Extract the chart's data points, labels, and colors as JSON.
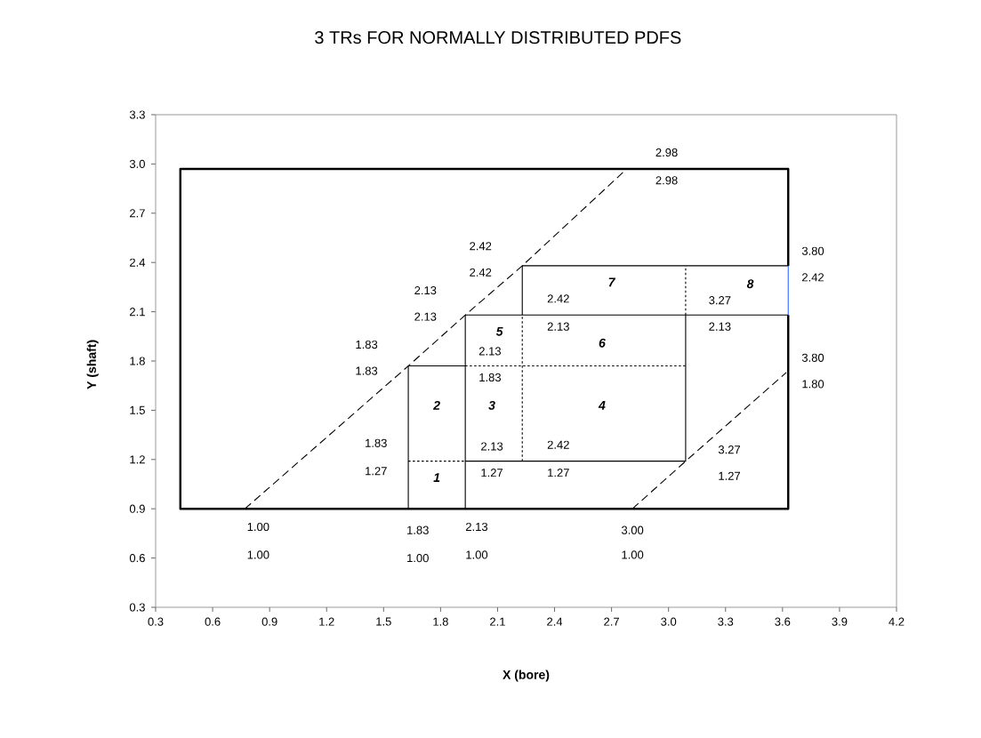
{
  "chart_data": {
    "type": "line",
    "title": "3 TRs FOR NORMALLY DISTRIBUTED PDFS",
    "xlabel": "X (bore)",
    "ylabel": "Y (shaft)",
    "xlim": [
      0.3,
      4.2
    ],
    "ylim": [
      0.3,
      3.3
    ],
    "xticks": [
      0.3,
      0.6,
      0.9,
      1.2,
      1.5,
      1.8,
      2.1,
      2.4,
      2.7,
      {
        "value": 3,
        "label": "3.0"
      },
      3.3,
      3.6,
      3.9,
      4.2
    ],
    "yticks": [
      0.3,
      0.6,
      0.9,
      1.2,
      1.5,
      1.8,
      2.1,
      2.4,
      2.7,
      {
        "value": 3,
        "label": "3.0"
      },
      3.3
    ],
    "marker": "none",
    "series": [
      {
        "color": "#000000",
        "line_style": "solid",
        "x": [
          3.63,
          3.63,
          0.43,
          0.43,
          3.63,
          3.63
        ],
        "values": [
          2.38,
          2.97,
          2.97,
          0.9,
          0.9,
          2.08
        ]
      },
      {
        "color": "#000000",
        "line_style": "solid",
        "x": [
          1.63,
          1.63,
          1.93
        ],
        "values": [
          0.9,
          1.77,
          1.77
        ]
      },
      {
        "color": "#000000",
        "line_style": "solid",
        "x": [
          1.93,
          1.93,
          3.63
        ],
        "values": [
          0.9,
          2.08,
          2.08
        ]
      },
      {
        "color": "#000000",
        "line_style": "solid",
        "x": [
          1.93,
          3.09,
          3.09
        ],
        "values": [
          1.19,
          1.19,
          2.08
        ]
      },
      {
        "color": "#000000",
        "line_style": "solid",
        "x": [
          2.23,
          2.23,
          3.63
        ],
        "values": [
          2.08,
          2.38,
          2.38
        ]
      },
      {
        "color": "#000000",
        "line_style": "dotted",
        "x": [
          1.63,
          1.93
        ],
        "values": [
          1.19,
          1.19
        ]
      },
      {
        "color": "#000000",
        "line_style": "dotted",
        "x": [
          2.23,
          2.23
        ],
        "values": [
          1.19,
          2.08
        ]
      },
      {
        "color": "#000000",
        "line_style": "dotted",
        "x": [
          1.93,
          3.09
        ],
        "values": [
          1.77,
          1.77
        ]
      },
      {
        "color": "#000000",
        "line_style": "dotted",
        "x": [
          3.09,
          3.09
        ],
        "values": [
          2.08,
          2.38
        ]
      },
      {
        "color": "#3366ff",
        "line_style": "solid",
        "x": [
          3.63,
          3.63
        ],
        "values": [
          2.08,
          2.38
        ]
      },
      {
        "color": "#000000",
        "line_style": "dashed",
        "x": [
          0.77,
          1.63,
          1.93,
          2.23,
          2.78
        ],
        "values": [
          0.9,
          1.77,
          2.08,
          2.38,
          2.97
        ]
      },
      {
        "color": "#000000",
        "line_style": "dashed",
        "x": [
          2.81,
          3.09,
          3.62
        ],
        "values": [
          0.9,
          1.19,
          1.73
        ]
      }
    ],
    "annotations": [
      {
        "text": "1.00",
        "x": 0.77,
        "y": 0.9
      },
      "1.00",
      {
        "text": "1.83",
        "x": 1.63,
        "y": 0.9
      },
      "1.00",
      {
        "text": "2.13",
        "x": 1.93,
        "y": 0.9
      },
      "1.00",
      {
        "text": "3.00",
        "x": 2.81,
        "y": 0.9
      },
      "1.00",
      {
        "text": "1.83",
        "x": 1.63,
        "y": 1.19
      },
      {
        "text": "1.27",
        "x": 1.63,
        "y": 1.19
      },
      "1",
      "2",
      "3",
      {
        "text": "2.13",
        "x": 1.93,
        "y": 1.19
      },
      {
        "text": "1.27",
        "x": 1.93,
        "y": 1.19
      },
      {
        "text": "2.42",
        "x": 2.23,
        "y": 1.19
      },
      {
        "text": "1.27",
        "x": 2.23,
        "y": 1.19
      },
      "4",
      {
        "text": "2.13",
        "x": 1.93,
        "y": 1.77
      },
      {
        "text": "1.83",
        "x": 1.93,
        "y": 1.77
      },
      "5",
      {
        "text": "2.13",
        "x": 2.23,
        "y": 2.08
      },
      "6",
      {
        "text": "2.42",
        "x": 2.23,
        "y": 2.08
      },
      "7",
      {
        "text": "3.27",
        "x": 3.09,
        "y": 2.08
      },
      {
        "text": "2.13",
        "x": 3.09,
        "y": 2.08
      },
      "8",
      {
        "text": "3.80",
        "x": 3.63,
        "y": 2.38
      },
      {
        "text": "2.42",
        "x": 3.63,
        "y": 2.38
      },
      {
        "text": "3.80",
        "x": 3.62,
        "y": 1.73
      },
      {
        "text": "1.80",
        "x": 3.62,
        "y": 1.73
      },
      {
        "text": "3.27",
        "x": 3.09,
        "y": 1.19
      },
      "1.27",
      {
        "text": "2.98",
        "x": 2.78,
        "y": 2.97
      },
      {
        "text": "2.98",
        "x": 2.78,
        "y": 2.97
      },
      "2.42",
      {
        "text": "2.42",
        "x": 2.23,
        "y": 2.38
      },
      "2.13",
      {
        "text": "2.13",
        "x": 1.93,
        "y": 2.08
      },
      "1.83",
      {
        "text": "1.83",
        "x": 1.63,
        "y": 1.77
      }
    ]
  }
}
